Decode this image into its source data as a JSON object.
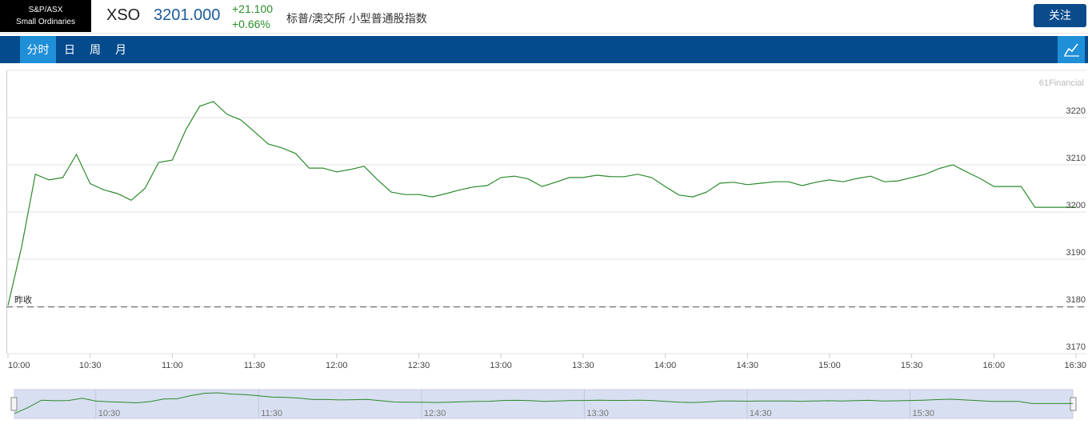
{
  "header": {
    "badge": [
      "S&P/ASX",
      "Small Ordinaries"
    ],
    "symbol": "XSO",
    "price": "3201.000",
    "change": "+21.100",
    "change_pct": "+0.66%",
    "name": "标普/澳交所 小型普通股指数",
    "follow_button": "关注"
  },
  "tabs": [
    "分时",
    "日",
    "周",
    "月"
  ],
  "chart_data": {
    "type": "line",
    "watermark": "61Financial",
    "color": "#2b8a2b",
    "x": [
      "10:00",
      "10:05",
      "10:10",
      "10:15",
      "10:20",
      "10:25",
      "10:30",
      "10:35",
      "10:40",
      "10:45",
      "10:50",
      "10:55",
      "11:00",
      "11:05",
      "11:10",
      "11:15",
      "11:20",
      "11:25",
      "11:30",
      "11:35",
      "11:40",
      "11:45",
      "11:50",
      "11:55",
      "12:00",
      "12:05",
      "12:10",
      "12:15",
      "12:20",
      "12:25",
      "12:30",
      "12:35",
      "12:40",
      "12:45",
      "12:50",
      "12:55",
      "13:00",
      "13:05",
      "13:10",
      "13:15",
      "13:20",
      "13:25",
      "13:30",
      "13:35",
      "13:40",
      "13:45",
      "13:50",
      "13:55",
      "14:00",
      "14:05",
      "14:10",
      "14:15",
      "14:20",
      "14:25",
      "14:30",
      "14:35",
      "14:40",
      "14:45",
      "14:50",
      "14:55",
      "15:00",
      "15:05",
      "15:10",
      "15:15",
      "15:20",
      "15:25",
      "15:30",
      "15:35",
      "15:40",
      "15:45",
      "15:50",
      "15:55",
      "16:00",
      "16:05",
      "16:10",
      "16:15",
      "16:20",
      "16:25",
      "16:30"
    ],
    "values": [
      3180.2,
      3192.7,
      3208,
      3206.8,
      3207.3,
      3212.2,
      3206,
      3204.7,
      3203.9,
      3202.5,
      3205,
      3210.5,
      3211,
      3217.5,
      3222.4,
      3223.4,
      3220.7,
      3219.5,
      3217,
      3214.4,
      3213.6,
      3212.4,
      3209.3,
      3209.3,
      3208.5,
      3209,
      3209.7,
      3206.8,
      3204.2,
      3203.7,
      3203.7,
      3203.2,
      3203.9,
      3204.7,
      3205.3,
      3205.6,
      3207.3,
      3207.6,
      3207,
      3205.4,
      3206.3,
      3207.3,
      3207.3,
      3207.8,
      3207.5,
      3207.5,
      3208,
      3207.3,
      3205.4,
      3203.6,
      3203.2,
      3204.2,
      3206.1,
      3206.3,
      3205.8,
      3206.1,
      3206.4,
      3206.4,
      3205.6,
      3206.3,
      3206.8,
      3206.4,
      3207.1,
      3207.6,
      3206.4,
      3206.6,
      3207.3,
      3208,
      3209.2,
      3210,
      3208.5,
      3207.1,
      3205.4,
      3205.4,
      3205.4,
      3201,
      3201,
      3201,
      3201
    ],
    "xlim": [
      "10:00",
      "16:30"
    ],
    "xticks": [
      "10:00",
      "10:30",
      "11:00",
      "11:30",
      "12:00",
      "12:30",
      "13:00",
      "13:30",
      "14:00",
      "14:30",
      "15:00",
      "15:30",
      "16:00",
      "16:30"
    ],
    "ylim": [
      3170,
      3230
    ],
    "yticks": [
      3170,
      3180,
      3190,
      3200,
      3210,
      3220
    ],
    "grid": true,
    "reference_line": {
      "value": 3179.9,
      "label": "昨收"
    },
    "navigator_ticks": [
      "10:30",
      "11:30",
      "12:30",
      "13:30",
      "14:30",
      "15:30"
    ]
  }
}
